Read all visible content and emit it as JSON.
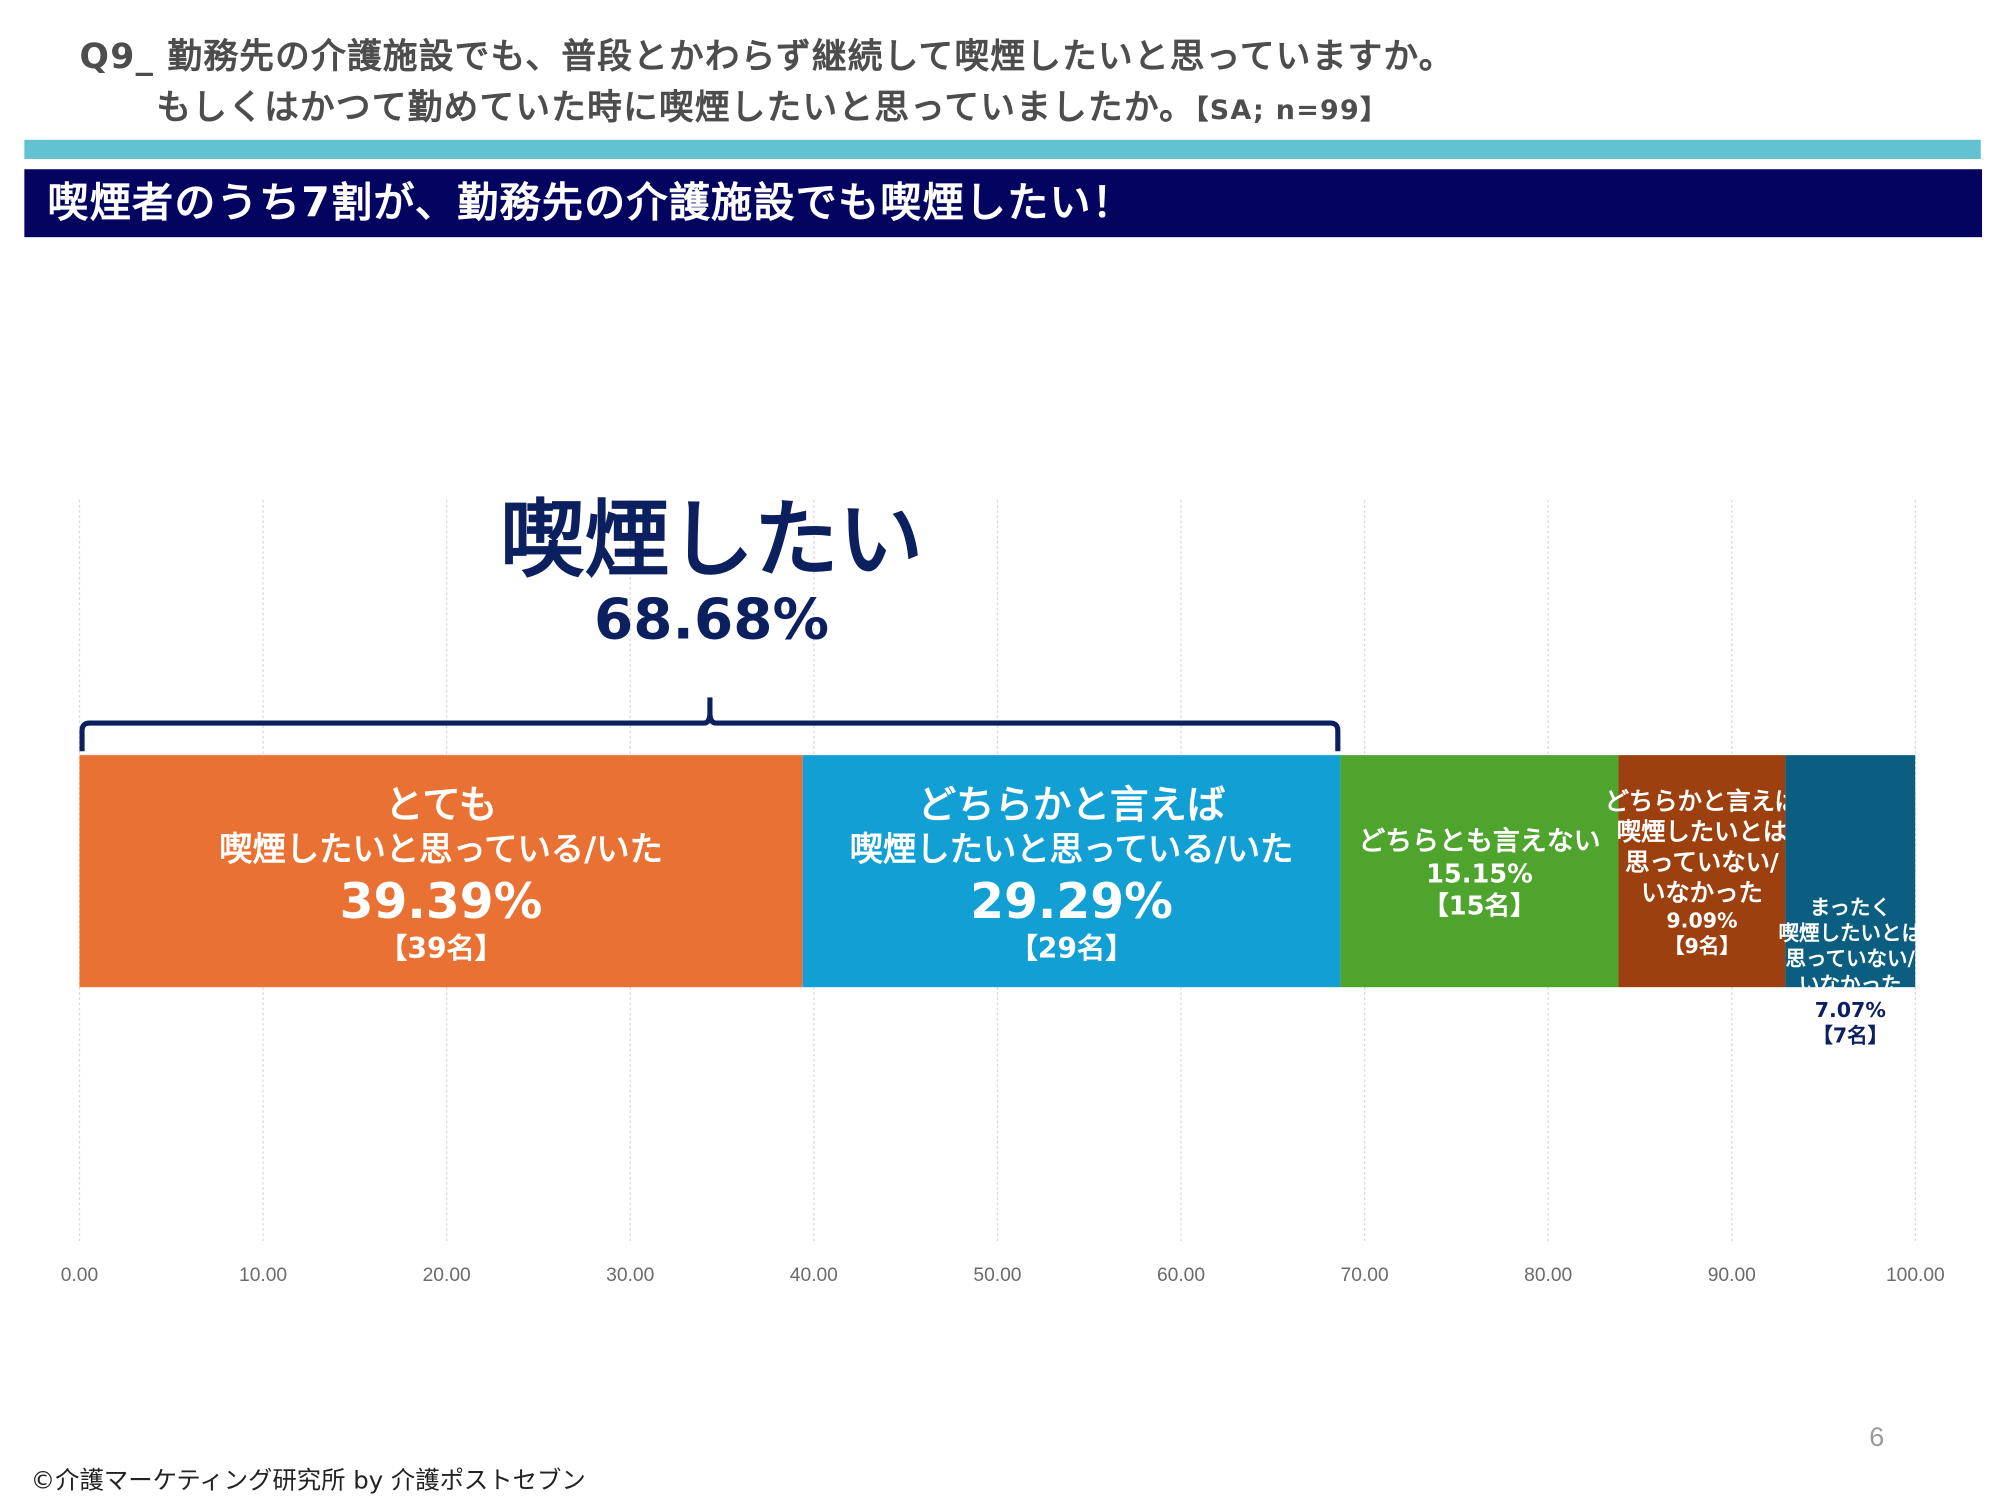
{
  "header": {
    "question_line1": "Q9_ 勤務先の介護施設でも、普段とかわらず継続して喫煙したいと思っていますか。",
    "question_line2": "もしくはかつて勤めていた時に喫煙したいと思っていましたか。",
    "question_meta": "【SA; n=99】",
    "banner": "喫煙者のうち7割が、勤務先の介護施設でも喫煙したい！"
  },
  "callout": {
    "title": "喫煙したい",
    "value": "68.68%"
  },
  "footer": {
    "copyright": "©介護マーケティング研究所 by 介護ポストセブン",
    "page_number": "6"
  },
  "chart_data": {
    "type": "bar",
    "orientation": "horizontal-stacked-100",
    "title": "喫煙したい 68.68%",
    "xlim": [
      0,
      100
    ],
    "x_ticks": [
      "0.00",
      "10.00",
      "20.00",
      "30.00",
      "40.00",
      "50.00",
      "60.00",
      "70.00",
      "80.00",
      "90.00",
      "100.00"
    ],
    "grid": true,
    "series": [
      {
        "name": "とても喫煙したいと思っている/いた",
        "label_lines": [
          "とても",
          "喫煙したいと思っている/いた"
        ],
        "value": 39.39,
        "value_label": "39.39%",
        "count_label": "【39名】",
        "color": "#e97134"
      },
      {
        "name": "どちらかと言えば喫煙したいと思っている/いた",
        "label_lines": [
          "どちらかと言えば",
          "喫煙したいと思っている/いた"
        ],
        "value": 29.29,
        "value_label": "29.29%",
        "count_label": "【29名】",
        "color": "#129fd4"
      },
      {
        "name": "どちらとも言えない",
        "label_lines": [
          "どちらとも言えない"
        ],
        "value": 15.15,
        "value_label": "15.15%",
        "count_label": "【15名】",
        "color": "#4fa42d"
      },
      {
        "name": "どちらかと言えば喫煙したいとは思っていない/いなかった",
        "label_lines": [
          "どちらかと言えば",
          "喫煙したいとは",
          "思っていない/",
          "いなかった"
        ],
        "value": 9.09,
        "value_label": "9.09%",
        "count_label": "【9名】",
        "color": "#9c400f"
      },
      {
        "name": "まったく喫煙したいとは思っていない/いなかった",
        "label_lines": [
          "まったく",
          "喫煙したいとは",
          "思っていない/",
          "いなかった"
        ],
        "value": 7.07,
        "value_label": "7.07%",
        "count_label": "【7名】",
        "color": "#0b5e80"
      }
    ],
    "bracket": {
      "from": 0,
      "to": 68.68,
      "label": "喫煙したい 68.68%",
      "color": "#0c2060"
    }
  }
}
